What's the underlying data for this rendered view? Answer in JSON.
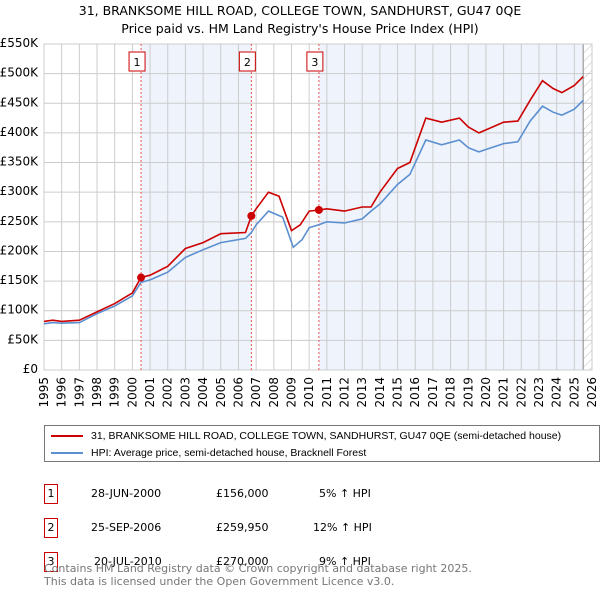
{
  "chart_data": {
    "type": "line",
    "title": "31, BRANKSOME HILL ROAD, COLLEGE TOWN, SANDHURST, GU47 0QE",
    "subtitle": "Price paid vs. HM Land Registry's House Price Index (HPI)",
    "xlim": [
      1995,
      2026
    ],
    "ylim": [
      0,
      550000
    ],
    "yticks": [
      {
        "v": 0,
        "l": "£0"
      },
      {
        "v": 50000,
        "l": "£50K"
      },
      {
        "v": 100000,
        "l": "£100K"
      },
      {
        "v": 150000,
        "l": "£150K"
      },
      {
        "v": 200000,
        "l": "£200K"
      },
      {
        "v": 250000,
        "l": "£250K"
      },
      {
        "v": 300000,
        "l": "£300K"
      },
      {
        "v": 350000,
        "l": "£350K"
      },
      {
        "v": 400000,
        "l": "£400K"
      },
      {
        "v": 450000,
        "l": "£450K"
      },
      {
        "v": 500000,
        "l": "£500K"
      },
      {
        "v": 550000,
        "l": "£550K"
      }
    ],
    "xticks": [
      "1995",
      "1996",
      "1997",
      "1998",
      "1999",
      "2000",
      "2001",
      "2002",
      "2003",
      "2004",
      "2005",
      "2006",
      "2007",
      "2008",
      "2009",
      "2010",
      "2011",
      "2012",
      "2013",
      "2014",
      "2015",
      "2016",
      "2017",
      "2018",
      "2019",
      "2020",
      "2021",
      "2022",
      "2023",
      "2024",
      "2025",
      "2026"
    ],
    "grid": true,
    "series": [
      {
        "name": "31, BRANKSOME HILL ROAD, COLLEGE TOWN, SANDHURST, GU47 0QE (semi-detached house)",
        "color": "#cc0000",
        "x": [
          1995,
          1995.5,
          1996,
          1997,
          1998,
          1999,
          2000,
          2000.49,
          2001,
          2002,
          2003,
          2004,
          2005,
          2006.4,
          2006.73,
          2007,
          2007.7,
          2008.3,
          2009,
          2009.5,
          2010,
          2010.55,
          2011,
          2012,
          2013,
          2013.5,
          2014,
          2015,
          2015.7,
          2016.6,
          2017.5,
          2018.5,
          2019,
          2019.6,
          2020,
          2021,
          2021.8,
          2022.5,
          2023.2,
          2023.8,
          2024.3,
          2025,
          2025.5
        ],
        "y": [
          82000,
          84000,
          82000,
          84000,
          98000,
          112000,
          130000,
          156000,
          160000,
          175000,
          205000,
          215000,
          230000,
          232000,
          259950,
          272000,
          300000,
          293000,
          235000,
          245000,
          268000,
          270000,
          272000,
          268000,
          275000,
          275000,
          300000,
          340000,
          350000,
          425000,
          418000,
          425000,
          410000,
          400000,
          405000,
          418000,
          420000,
          455000,
          488000,
          475000,
          468000,
          480000,
          495000
        ]
      },
      {
        "name": "HPI: Average price, semi-detached house, Bracknell Forest",
        "color": "#5b8fd0",
        "x": [
          1995,
          1995.5,
          1996,
          1997,
          1998,
          1999,
          2000,
          2000.49,
          2001,
          2002,
          2003,
          2004,
          2005,
          2006.4,
          2006.73,
          2007,
          2007.7,
          2008.5,
          2009.1,
          2009.6,
          2010,
          2010.55,
          2011,
          2012,
          2013,
          2013.5,
          2014,
          2015,
          2015.7,
          2016.6,
          2017.5,
          2018.5,
          2019,
          2019.6,
          2020,
          2021,
          2021.8,
          2022.5,
          2023.2,
          2023.8,
          2024.3,
          2025,
          2025.5
        ],
        "y": [
          78000,
          80000,
          79000,
          80000,
          95000,
          108000,
          125000,
          148000,
          152000,
          165000,
          190000,
          203000,
          215000,
          222000,
          232000,
          245000,
          268000,
          258000,
          207000,
          220000,
          240000,
          245000,
          250000,
          248000,
          255000,
          268000,
          280000,
          313000,
          330000,
          388000,
          380000,
          388000,
          375000,
          368000,
          372000,
          382000,
          385000,
          420000,
          445000,
          435000,
          430000,
          440000,
          455000
        ]
      }
    ],
    "sales": [
      {
        "n": "1",
        "x": 2000.49,
        "price": 156000,
        "date": "28-JUN-2000",
        "price_label": "£156,000",
        "hpi": "5% ↑ HPI"
      },
      {
        "n": "2",
        "x": 2006.73,
        "price": 259950,
        "date": "25-SEP-2006",
        "price_label": "£259,950",
        "hpi": "12% ↑ HPI"
      },
      {
        "n": "3",
        "x": 2010.55,
        "price": 270000,
        "date": "20-JUL-2010",
        "price_label": "£270,000",
        "hpi": "9% ↑ HPI"
      }
    ],
    "forecast_from": 2025.5
  },
  "footer": {
    "line1": "Contains HM Land Registry data © Crown copyright and database right 2025.",
    "line2": "This data is licensed under the Open Government Licence v3.0."
  }
}
